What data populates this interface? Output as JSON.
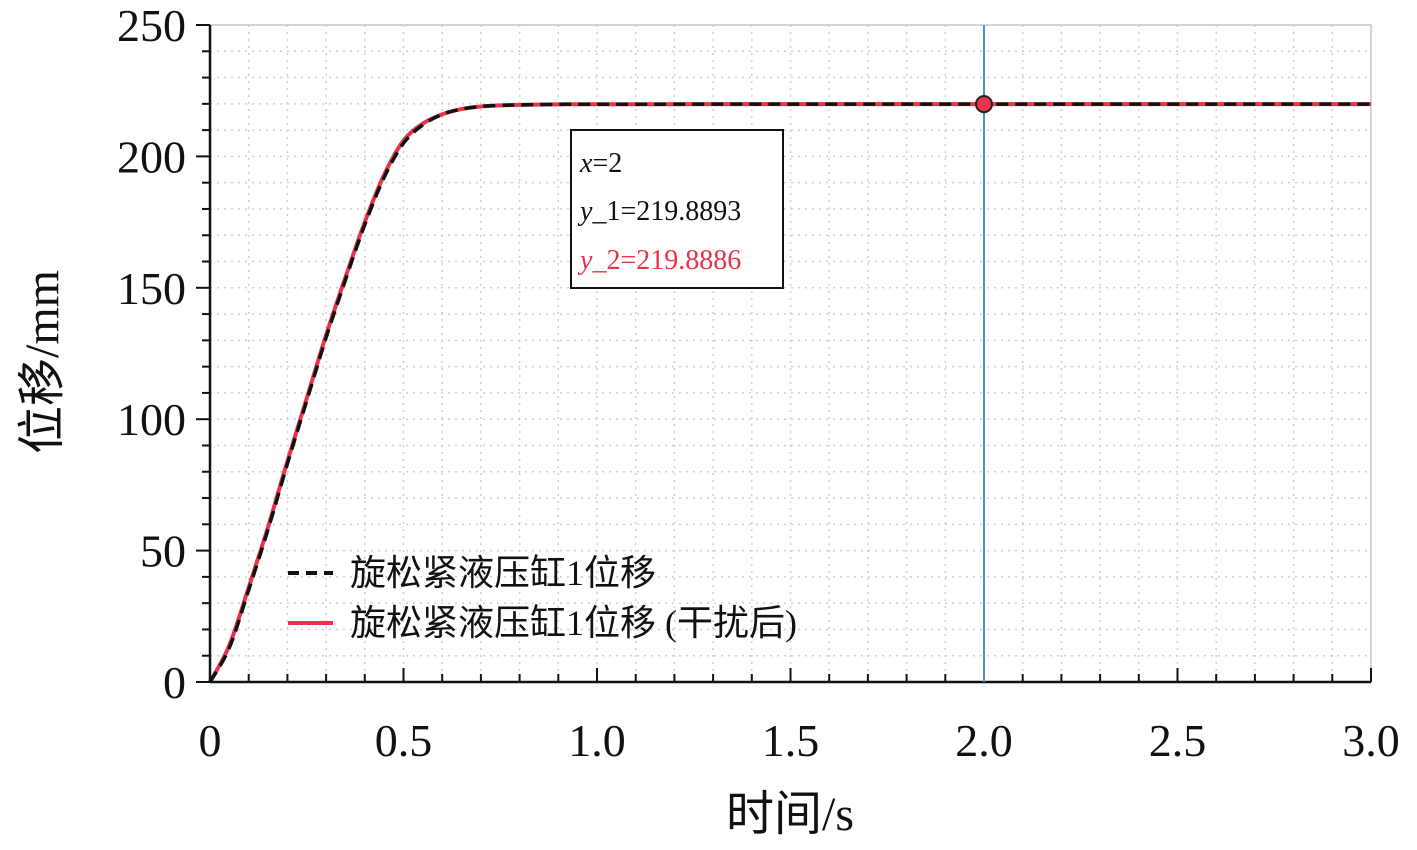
{
  "chart_data": {
    "type": "line",
    "title": "",
    "xlabel": "时间/s",
    "ylabel": "位移/mm",
    "xlim": [
      0,
      3.0
    ],
    "ylim": [
      0,
      250
    ],
    "x_ticks": [
      "0",
      "0.5",
      "1.0",
      "1.5",
      "2.0",
      "2.5",
      "3.0"
    ],
    "y_ticks": [
      "0",
      "50",
      "100",
      "150",
      "200",
      "250"
    ],
    "grid": true,
    "legend_position": "lower-left",
    "series": [
      {
        "name": "旋松紧液压缸1位移",
        "style": "dashed",
        "color": "#111111",
        "x": [
          0,
          0.05,
          0.1,
          0.15,
          0.2,
          0.25,
          0.3,
          0.35,
          0.4,
          0.45,
          0.5,
          0.55,
          0.6,
          0.65,
          0.7,
          0.75,
          0.8,
          0.9,
          1.0,
          1.5,
          2.0,
          2.5,
          3.0
        ],
        "values": [
          0,
          13,
          35,
          58,
          83,
          107,
          131,
          153,
          174,
          192,
          205,
          212,
          216,
          218,
          219,
          219.4,
          219.6,
          219.8,
          219.85,
          219.88,
          219.8893,
          219.889,
          219.889
        ]
      },
      {
        "name": "旋松紧液压缸1位移 (干扰后)",
        "style": "solid",
        "color": "#e8334a",
        "x": [
          0,
          0.05,
          0.1,
          0.15,
          0.2,
          0.25,
          0.3,
          0.35,
          0.4,
          0.45,
          0.5,
          0.55,
          0.6,
          0.65,
          0.7,
          0.75,
          0.8,
          0.9,
          1.0,
          1.5,
          2.0,
          2.5,
          3.0
        ],
        "values": [
          0,
          14,
          36,
          59,
          84,
          108,
          132,
          154,
          175,
          193,
          206,
          212.5,
          216,
          218,
          219,
          219.4,
          219.6,
          219.8,
          219.85,
          219.88,
          219.8886,
          219.889,
          219.889
        ]
      }
    ],
    "cursor": {
      "x": 2.0,
      "y": 219.8893,
      "color": "#4a90d9",
      "marker_color": "#e8334a"
    },
    "annotation": {
      "x_label": "x",
      "x_value": "=2",
      "y1_label": "y",
      "y1_value": "_1=219.8893",
      "y2_label": "y",
      "y2_value": "_2=219.8886",
      "y2_color": "#e8334a"
    }
  }
}
